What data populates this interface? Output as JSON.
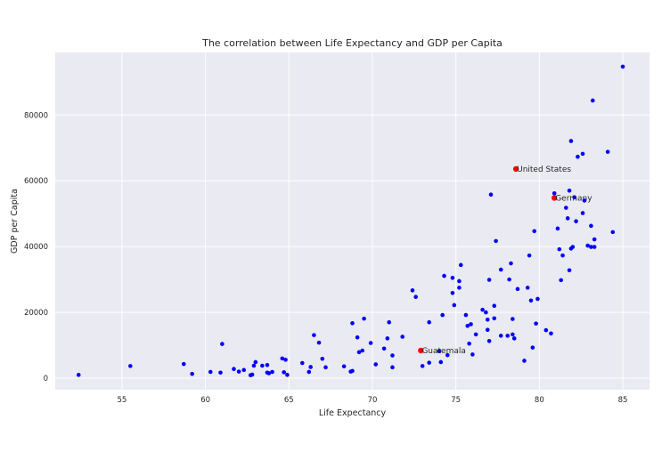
{
  "chart_data": {
    "type": "scatter",
    "title": "The correlation between Life Expectancy and GDP per Capita",
    "xlabel": "Life Expectancy",
    "ylabel": "GDP per Capita",
    "xlim": [
      51.0,
      86.6
    ],
    "ylim": [
      -3500,
      99000
    ],
    "xticks": [
      55,
      60,
      65,
      70,
      75,
      80,
      85
    ],
    "yticks": [
      0,
      20000,
      40000,
      60000,
      80000
    ],
    "grid": true,
    "background": "#eaeaf2",
    "grid_color": "#ffffff",
    "point_color": "#0000ff",
    "highlight_color": "#ff0000",
    "points": [
      [
        52.4,
        1000
      ],
      [
        55.5,
        3700
      ],
      [
        58.7,
        4300
      ],
      [
        59.2,
        1300
      ],
      [
        60.3,
        1900
      ],
      [
        60.9,
        1700
      ],
      [
        61.0,
        10400
      ],
      [
        61.7,
        2800
      ],
      [
        62.0,
        2000
      ],
      [
        62.3,
        2500
      ],
      [
        62.7,
        900
      ],
      [
        62.8,
        1100
      ],
      [
        62.9,
        3800
      ],
      [
        63.0,
        4900
      ],
      [
        63.4,
        3800
      ],
      [
        63.7,
        4000
      ],
      [
        63.7,
        1700
      ],
      [
        63.8,
        1500
      ],
      [
        64.0,
        1900
      ],
      [
        64.6,
        6000
      ],
      [
        64.8,
        5600
      ],
      [
        64.7,
        1800
      ],
      [
        64.9,
        1000
      ],
      [
        65.8,
        4600
      ],
      [
        66.2,
        1900
      ],
      [
        66.3,
        3400
      ],
      [
        66.5,
        13100
      ],
      [
        66.8,
        10800
      ],
      [
        67.0,
        5900
      ],
      [
        67.2,
        3300
      ],
      [
        68.3,
        3600
      ],
      [
        68.8,
        16700
      ],
      [
        68.7,
        2000
      ],
      [
        68.8,
        2200
      ],
      [
        69.1,
        12400
      ],
      [
        69.2,
        7900
      ],
      [
        69.4,
        8400
      ],
      [
        69.5,
        18100
      ],
      [
        69.9,
        10700
      ],
      [
        70.2,
        4200
      ],
      [
        70.7,
        9000
      ],
      [
        70.9,
        12100
      ],
      [
        71.0,
        17000
      ],
      [
        71.2,
        6900
      ],
      [
        71.2,
        3300
      ],
      [
        71.8,
        12600
      ],
      [
        72.4,
        26700
      ],
      [
        72.6,
        24700
      ],
      [
        73.0,
        3700
      ],
      [
        73.4,
        17000
      ],
      [
        73.4,
        4700
      ],
      [
        74.0,
        8200
      ],
      [
        74.1,
        4900
      ],
      [
        74.2,
        19200
      ],
      [
        74.3,
        31100
      ],
      [
        74.5,
        7000
      ],
      [
        74.8,
        30500
      ],
      [
        74.8,
        25900
      ],
      [
        74.9,
        22200
      ],
      [
        75.2,
        29500
      ],
      [
        75.2,
        27500
      ],
      [
        75.3,
        34400
      ],
      [
        75.6,
        19200
      ],
      [
        75.7,
        15900
      ],
      [
        75.8,
        10500
      ],
      [
        75.9,
        16400
      ],
      [
        76.0,
        7200
      ],
      [
        76.2,
        13300
      ],
      [
        76.6,
        20800
      ],
      [
        76.8,
        20000
      ],
      [
        76.9,
        14700
      ],
      [
        76.9,
        17800
      ],
      [
        77.0,
        11300
      ],
      [
        77.1,
        55800
      ],
      [
        77.0,
        29900
      ],
      [
        77.3,
        22000
      ],
      [
        77.3,
        18200
      ],
      [
        77.4,
        41700
      ],
      [
        77.7,
        33000
      ],
      [
        77.7,
        12900
      ],
      [
        78.1,
        12900
      ],
      [
        78.2,
        30000
      ],
      [
        78.3,
        34900
      ],
      [
        78.4,
        18000
      ],
      [
        78.4,
        13300
      ],
      [
        78.5,
        12100
      ],
      [
        78.7,
        27100
      ],
      [
        79.1,
        5300
      ],
      [
        79.3,
        27500
      ],
      [
        79.4,
        37300
      ],
      [
        79.5,
        23600
      ],
      [
        79.6,
        9300
      ],
      [
        79.7,
        44700
      ],
      [
        79.8,
        16600
      ],
      [
        79.9,
        24100
      ],
      [
        80.4,
        14600
      ],
      [
        80.7,
        13600
      ],
      [
        80.9,
        56200
      ],
      [
        81.1,
        45500
      ],
      [
        81.2,
        39200
      ],
      [
        81.3,
        29800
      ],
      [
        81.4,
        37300
      ],
      [
        81.6,
        51800
      ],
      [
        81.7,
        48600
      ],
      [
        81.8,
        57000
      ],
      [
        81.8,
        32800
      ],
      [
        81.9,
        72100
      ],
      [
        81.9,
        39400
      ],
      [
        82.0,
        39900
      ],
      [
        82.1,
        55000
      ],
      [
        82.2,
        47700
      ],
      [
        82.3,
        67300
      ],
      [
        82.6,
        68200
      ],
      [
        82.6,
        50200
      ],
      [
        82.7,
        54000
      ],
      [
        82.9,
        40300
      ],
      [
        83.1,
        46300
      ],
      [
        83.1,
        39900
      ],
      [
        83.2,
        84400
      ],
      [
        83.3,
        39900
      ],
      [
        83.3,
        42200
      ],
      [
        84.1,
        68800
      ],
      [
        84.4,
        44400
      ],
      [
        85.0,
        94700
      ]
    ],
    "highlights": [
      {
        "label": "United States",
        "x": 78.6,
        "y": 63600
      },
      {
        "label": "Germany",
        "x": 80.9,
        "y": 54800
      },
      {
        "label": "Guatemala",
        "x": 72.9,
        "y": 8400
      }
    ]
  }
}
